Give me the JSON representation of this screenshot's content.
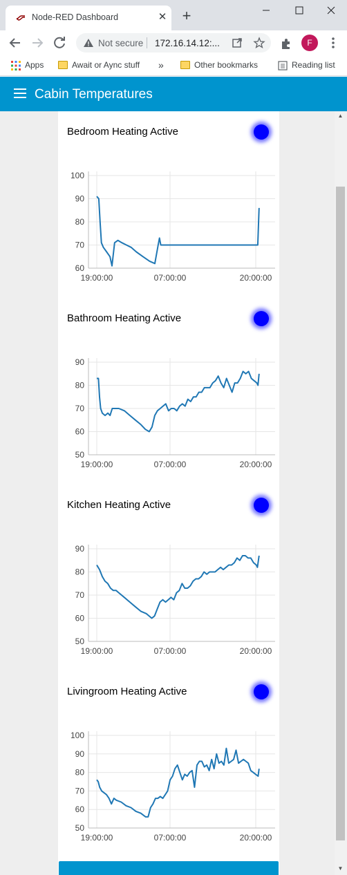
{
  "browser": {
    "tab_title": "Node-RED Dashboard",
    "omnibox_security": "Not secure",
    "omnibox_url": "172.16.14.12:...",
    "profile_initial": "F",
    "bookmarks": {
      "apps": "Apps",
      "item1": "Await or Aync stuff",
      "overflow": "»",
      "other": "Other bookmarks",
      "reading": "Reading list"
    }
  },
  "dashboard": {
    "title": "Cabin Temperatures",
    "accent": "#0094ce",
    "led_color": "#0000ff",
    "groups": [
      {
        "label": "Bedroom Heating Active"
      },
      {
        "label": "Bathroom Heating Active"
      },
      {
        "label": "Kitchen Heating Active"
      },
      {
        "label": "Livingroom Heating Active"
      }
    ]
  },
  "chart_data": [
    {
      "type": "line",
      "x_ticks": [
        "19:00:00",
        "07:00:00",
        "20:00:00"
      ],
      "y_ticks": [
        "100",
        "90",
        "80",
        "70",
        "60"
      ],
      "ylim": [
        60,
        100
      ],
      "series": [
        {
          "color": "#1f77b4",
          "points": [
            [
              0,
              91
            ],
            [
              0.3,
              90
            ],
            [
              0.5,
              80
            ],
            [
              0.7,
              71
            ],
            [
              1,
              69
            ],
            [
              1.5,
              67
            ],
            [
              2.0,
              65
            ],
            [
              2.3,
              61
            ],
            [
              2.7,
              71
            ],
            [
              3.2,
              72
            ],
            [
              3.8,
              71
            ],
            [
              4.5,
              70
            ],
            [
              5.2,
              69
            ],
            [
              6,
              67
            ],
            [
              7,
              65
            ],
            [
              8,
              63
            ],
            [
              8.8,
              62
            ],
            [
              9.3,
              70
            ],
            [
              9.5,
              73
            ],
            [
              9.7,
              70
            ],
            [
              10.5,
              70
            ],
            [
              15,
              70
            ],
            [
              20,
              70
            ],
            [
              22,
              70
            ],
            [
              24.4,
              70
            ],
            [
              24.6,
              86
            ]
          ]
        }
      ]
    },
    {
      "type": "line",
      "x_ticks": [
        "19:00:00",
        "07:00:00",
        "20:00:00"
      ],
      "y_ticks": [
        "90",
        "80",
        "70",
        "60",
        "50"
      ],
      "ylim": [
        50,
        90
      ],
      "series": [
        {
          "color": "#1f77b4",
          "points": [
            [
              0,
              83
            ],
            [
              0.3,
              83
            ],
            [
              0.5,
              75
            ],
            [
              0.7,
              70
            ],
            [
              1,
              68
            ],
            [
              1.5,
              67
            ],
            [
              2,
              68
            ],
            [
              2.4,
              67
            ],
            [
              2.8,
              70
            ],
            [
              3.5,
              70
            ],
            [
              4,
              70
            ],
            [
              5,
              69
            ],
            [
              6,
              67
            ],
            [
              7,
              65
            ],
            [
              8,
              63
            ],
            [
              8.8,
              61
            ],
            [
              9.5,
              60
            ],
            [
              10,
              62
            ],
            [
              10.5,
              67
            ],
            [
              11,
              69
            ],
            [
              11.5,
              70
            ],
            [
              12,
              71
            ],
            [
              12.5,
              72
            ],
            [
              13,
              69
            ],
            [
              13.5,
              70
            ],
            [
              14,
              70
            ],
            [
              14.5,
              69
            ],
            [
              15,
              71
            ],
            [
              15.5,
              72
            ],
            [
              16,
              71
            ],
            [
              16.5,
              74
            ],
            [
              17,
              73
            ],
            [
              17.5,
              75
            ],
            [
              18,
              75
            ],
            [
              18.5,
              77
            ],
            [
              19,
              77
            ],
            [
              19.5,
              79
            ],
            [
              20,
              79
            ],
            [
              20.5,
              79
            ],
            [
              21,
              81
            ],
            [
              21.5,
              82
            ],
            [
              22,
              84
            ],
            [
              22.5,
              81
            ],
            [
              23,
              79
            ],
            [
              23.5,
              83
            ],
            [
              24,
              80
            ],
            [
              24.5,
              77
            ],
            [
              25,
              81
            ],
            [
              25.5,
              81
            ],
            [
              26,
              83
            ],
            [
              26.5,
              86
            ],
            [
              27,
              85
            ],
            [
              27.5,
              86
            ],
            [
              28,
              83
            ],
            [
              28.5,
              82
            ],
            [
              29,
              81
            ],
            [
              29.2,
              80
            ],
            [
              29.4,
              85
            ]
          ]
        }
      ]
    },
    {
      "type": "line",
      "x_ticks": [
        "19:00:00",
        "07:00:00",
        "20:00:00"
      ],
      "y_ticks": [
        "90",
        "80",
        "70",
        "60",
        "50"
      ],
      "ylim": [
        50,
        90
      ],
      "series": [
        {
          "color": "#1f77b4",
          "points": [
            [
              0,
              83
            ],
            [
              0.5,
              81
            ],
            [
              1,
              78
            ],
            [
              1.5,
              76
            ],
            [
              2,
              75
            ],
            [
              2.5,
              73
            ],
            [
              3,
              72
            ],
            [
              3.5,
              72
            ],
            [
              4,
              71
            ],
            [
              5,
              69
            ],
            [
              6,
              67
            ],
            [
              7,
              65
            ],
            [
              8,
              63
            ],
            [
              9,
              62
            ],
            [
              10,
              60
            ],
            [
              10.5,
              61
            ],
            [
              11,
              64
            ],
            [
              11.5,
              67
            ],
            [
              12,
              68
            ],
            [
              12.5,
              67
            ],
            [
              13,
              68
            ],
            [
              13.5,
              69
            ],
            [
              14,
              68
            ],
            [
              14.5,
              71
            ],
            [
              15,
              72
            ],
            [
              15.5,
              75
            ],
            [
              16,
              73
            ],
            [
              16.5,
              73
            ],
            [
              17,
              74
            ],
            [
              17.5,
              76
            ],
            [
              18,
              77
            ],
            [
              18.5,
              77
            ],
            [
              19,
              78
            ],
            [
              19.5,
              80
            ],
            [
              20,
              79
            ],
            [
              20.5,
              80
            ],
            [
              21,
              80
            ],
            [
              21.5,
              80
            ],
            [
              22,
              81
            ],
            [
              22.5,
              82
            ],
            [
              23,
              81
            ],
            [
              23.5,
              82
            ],
            [
              24,
              83
            ],
            [
              24.5,
              83
            ],
            [
              25,
              84
            ],
            [
              25.5,
              86
            ],
            [
              26,
              85
            ],
            [
              26.5,
              87
            ],
            [
              27,
              87
            ],
            [
              27.5,
              86
            ],
            [
              28,
              86
            ],
            [
              28.5,
              84
            ],
            [
              29,
              83
            ],
            [
              29.2,
              82
            ],
            [
              29.5,
              87
            ]
          ]
        }
      ]
    },
    {
      "type": "line",
      "x_ticks": [
        "19:00:00",
        "07:00:00",
        "20:00:00"
      ],
      "y_ticks": [
        "100",
        "90",
        "80",
        "70",
        "60",
        "50"
      ],
      "ylim": [
        50,
        100
      ],
      "series": [
        {
          "color": "#1f77b4",
          "points": [
            [
              0,
              76
            ],
            [
              0.3,
              75
            ],
            [
              0.6,
              72
            ],
            [
              1,
              70
            ],
            [
              1.5,
              69
            ],
            [
              2,
              68
            ],
            [
              2.5,
              66
            ],
            [
              3,
              63
            ],
            [
              3.5,
              66
            ],
            [
              4,
              65
            ],
            [
              5,
              64
            ],
            [
              6,
              62
            ],
            [
              7,
              61
            ],
            [
              8,
              59
            ],
            [
              9,
              58
            ],
            [
              10,
              56
            ],
            [
              10.5,
              56
            ],
            [
              11,
              61
            ],
            [
              11.5,
              63
            ],
            [
              12,
              66
            ],
            [
              12.5,
              66
            ],
            [
              13,
              67
            ],
            [
              13.5,
              66
            ],
            [
              14,
              68
            ],
            [
              14.5,
              70
            ],
            [
              15,
              76
            ],
            [
              15.5,
              78
            ],
            [
              16,
              82
            ],
            [
              16.5,
              84
            ],
            [
              17,
              80
            ],
            [
              17.5,
              76
            ],
            [
              18,
              79
            ],
            [
              18.5,
              78
            ],
            [
              19,
              80
            ],
            [
              19.5,
              81
            ],
            [
              20,
              72
            ],
            [
              20.5,
              84
            ],
            [
              21,
              86
            ],
            [
              21.5,
              86
            ],
            [
              22,
              83
            ],
            [
              22.5,
              84
            ],
            [
              23,
              81
            ],
            [
              23.5,
              87
            ],
            [
              24,
              82
            ],
            [
              24.5,
              90
            ],
            [
              25,
              85
            ],
            [
              25.5,
              86
            ],
            [
              26,
              84
            ],
            [
              26.5,
              93
            ],
            [
              27,
              85
            ],
            [
              27.5,
              86
            ],
            [
              28,
              87
            ],
            [
              28.5,
              92
            ],
            [
              29,
              85
            ],
            [
              29.5,
              86
            ],
            [
              30,
              87
            ],
            [
              30.5,
              86
            ],
            [
              31,
              85
            ],
            [
              31.5,
              81
            ],
            [
              32,
              80
            ],
            [
              32.5,
              79
            ],
            [
              33,
              78
            ],
            [
              33.2,
              82
            ]
          ]
        }
      ]
    }
  ]
}
